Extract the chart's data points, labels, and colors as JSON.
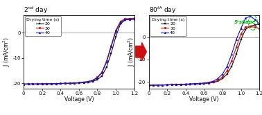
{
  "title_left": "2$^{nd}$ day",
  "title_right": "80$^{th}$ day",
  "xlabel": "Voltage (V)",
  "ylabel": "J (mA/cm$^2$)",
  "xlim": [
    0,
    1.2
  ],
  "ylim_left": [
    -22,
    7
  ],
  "ylim_right": [
    -23,
    10
  ],
  "yticks": [
    -20,
    -10,
    0
  ],
  "xticks": [
    0,
    0.2,
    0.4,
    0.6,
    0.8,
    1.0,
    1.2
  ],
  "xtick_labels": [
    "0",
    "0.2",
    "0.4",
    "0.6",
    "0.8",
    "1.0",
    "1.2"
  ],
  "ytick_labels": [
    "-20",
    "-10",
    "0"
  ],
  "legend_title": "Drying time (s)",
  "legend_entries": [
    "20",
    "30",
    "40"
  ],
  "colors": [
    "#111111",
    "#cc1111",
    "#1111cc"
  ],
  "sshape_color": "#00bb00",
  "arrow_color": "#cc1111",
  "bg_color": "#ffffff",
  "day2": {
    "v": [
      0.0,
      0.05,
      0.1,
      0.15,
      0.2,
      0.25,
      0.3,
      0.35,
      0.4,
      0.45,
      0.5,
      0.55,
      0.6,
      0.65,
      0.7,
      0.75,
      0.8,
      0.85,
      0.9,
      0.95,
      1.0,
      1.05,
      1.1,
      1.15,
      1.2
    ],
    "j20": [
      -20.2,
      -20.2,
      -20.2,
      -20.2,
      -20.15,
      -20.15,
      -20.1,
      -20.1,
      -20.05,
      -20.0,
      -20.0,
      -19.9,
      -19.8,
      -19.7,
      -19.5,
      -19.2,
      -18.5,
      -17.0,
      -13.5,
      -8.0,
      -1.5,
      3.5,
      5.0,
      5.2,
      5.3
    ],
    "j30": [
      -20.2,
      -20.2,
      -20.2,
      -20.15,
      -20.15,
      -20.1,
      -20.1,
      -20.05,
      -20.0,
      -19.95,
      -19.9,
      -19.8,
      -19.7,
      -19.5,
      -19.2,
      -18.7,
      -17.5,
      -15.5,
      -11.0,
      -5.0,
      1.0,
      4.5,
      5.5,
      5.6,
      5.7
    ],
    "j40": [
      -20.3,
      -20.25,
      -20.2,
      -20.2,
      -20.15,
      -20.15,
      -20.1,
      -20.05,
      -20.0,
      -19.95,
      -19.9,
      -19.8,
      -19.7,
      -19.5,
      -19.2,
      -18.8,
      -17.8,
      -15.8,
      -11.5,
      -5.5,
      0.5,
      4.0,
      5.2,
      5.3,
      5.4
    ]
  },
  "day80": {
    "v": [
      0.0,
      0.05,
      0.1,
      0.15,
      0.2,
      0.25,
      0.3,
      0.35,
      0.4,
      0.45,
      0.5,
      0.55,
      0.6,
      0.65,
      0.7,
      0.75,
      0.8,
      0.85,
      0.9,
      0.95,
      1.0,
      1.05,
      1.1,
      1.15,
      1.2
    ],
    "j20": [
      -21.5,
      -21.5,
      -21.5,
      -21.4,
      -21.4,
      -21.3,
      -21.3,
      -21.2,
      -21.2,
      -21.1,
      -21.0,
      -20.9,
      -20.8,
      -20.6,
      -20.3,
      -19.7,
      -18.5,
      -16.5,
      -13.0,
      -7.5,
      -1.0,
      3.5,
      5.0,
      5.5,
      5.8
    ],
    "j30": [
      -21.5,
      -21.5,
      -21.4,
      -21.4,
      -21.3,
      -21.3,
      -21.2,
      -21.2,
      -21.1,
      -21.0,
      -20.9,
      -20.8,
      -20.7,
      -20.5,
      -20.1,
      -19.3,
      -17.8,
      -15.0,
      -10.5,
      -4.5,
      1.5,
      4.5,
      4.8,
      4.5,
      4.0
    ],
    "j40": [
      -21.5,
      -21.5,
      -21.4,
      -21.4,
      -21.3,
      -21.3,
      -21.2,
      -21.1,
      -21.0,
      -20.9,
      -20.8,
      -20.7,
      -20.5,
      -20.2,
      -19.7,
      -18.5,
      -16.5,
      -13.0,
      -7.5,
      -1.0,
      4.0,
      8.5,
      9.5,
      8.0,
      6.0
    ]
  }
}
